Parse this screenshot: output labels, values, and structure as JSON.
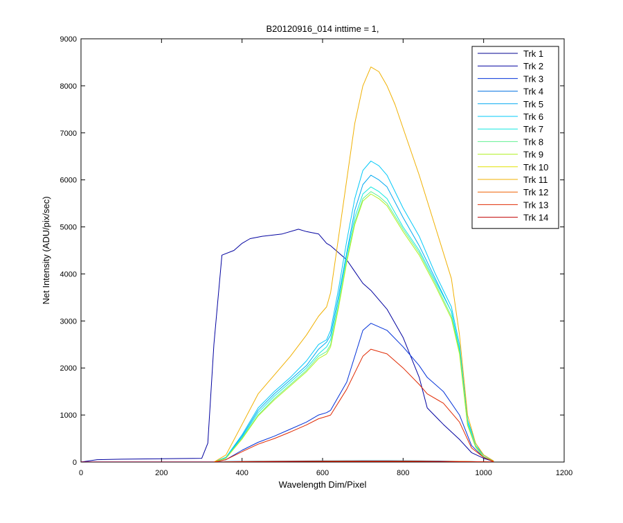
{
  "chart_data": {
    "type": "line",
    "title": "B20120916_014 inttime = 1,",
    "xlabel": "Wavelength Dim/Pixel",
    "ylabel": "Net Intensity (ADU/pix/sec)",
    "xlim": [
      0,
      1200
    ],
    "ylim": [
      0,
      9000
    ],
    "xticks": [
      0,
      200,
      400,
      600,
      800,
      1000,
      1200
    ],
    "yticks": [
      0,
      1000,
      2000,
      3000,
      4000,
      5000,
      6000,
      7000,
      8000,
      9000
    ],
    "grid": false,
    "legend_position": "top-right",
    "series": [
      {
        "name": "Trk 1",
        "color": "#00008f",
        "x": [
          0,
          300,
          320,
          340,
          380,
          420,
          460,
          500,
          540,
          560,
          580,
          610,
          620,
          660,
          700,
          720,
          760,
          800,
          820,
          860,
          900,
          960,
          1000,
          1025
        ],
        "y": [
          5,
          5,
          5,
          5,
          8,
          10,
          12,
          12,
          13,
          14,
          14,
          14,
          14,
          15,
          15,
          15,
          15,
          15,
          14,
          12,
          10,
          8,
          5,
          3
        ]
      },
      {
        "name": "Trk 2",
        "color": "#00009f",
        "x": [
          0,
          40,
          100,
          200,
          300,
          315,
          330,
          350,
          380,
          400,
          420,
          450,
          500,
          540,
          560,
          590,
          610,
          620,
          660,
          700,
          720,
          760,
          800,
          840,
          860,
          900,
          940,
          970,
          1000,
          1025
        ],
        "y": [
          0,
          50,
          60,
          70,
          80,
          400,
          2500,
          4400,
          4500,
          4650,
          4750,
          4800,
          4850,
          4950,
          4900,
          4850,
          4650,
          4600,
          4300,
          3800,
          3650,
          3250,
          2650,
          1800,
          1150,
          800,
          480,
          200,
          80,
          10
        ]
      },
      {
        "name": "Trk 3",
        "color": "#0030d8",
        "x": [
          0,
          330,
          360,
          400,
          440,
          480,
          520,
          560,
          590,
          610,
          620,
          660,
          700,
          720,
          760,
          800,
          840,
          860,
          900,
          940,
          970,
          1000,
          1025
        ],
        "y": [
          0,
          0,
          50,
          250,
          420,
          550,
          700,
          850,
          1000,
          1050,
          1100,
          1700,
          2800,
          2950,
          2800,
          2450,
          2050,
          1800,
          1500,
          1000,
          350,
          100,
          10
        ]
      },
      {
        "name": "Trk 4",
        "color": "#0070e0",
        "x": [
          0,
          340,
          360,
          400,
          440,
          480,
          520,
          560,
          590,
          610,
          620,
          660,
          700,
          720,
          760,
          800,
          840,
          860,
          900,
          940,
          970,
          1000,
          1025
        ],
        "y": [
          0,
          0,
          10,
          15,
          18,
          20,
          22,
          24,
          26,
          26,
          26,
          28,
          30,
          30,
          30,
          28,
          26,
          24,
          20,
          15,
          10,
          5,
          2
        ]
      },
      {
        "name": "Trk 5",
        "color": "#00a8f0",
        "x": [
          0,
          330,
          360,
          400,
          440,
          480,
          520,
          560,
          590,
          610,
          620,
          640,
          660,
          680,
          700,
          720,
          740,
          760,
          800,
          840,
          880,
          920,
          940,
          960,
          980,
          1000,
          1025
        ],
        "y": [
          0,
          0,
          100,
          550,
          1100,
          1450,
          1750,
          2050,
          2400,
          2550,
          2700,
          3550,
          4450,
          5350,
          5900,
          6100,
          6000,
          5850,
          5200,
          4600,
          3900,
          3200,
          2400,
          800,
          350,
          150,
          20
        ]
      },
      {
        "name": "Trk 6",
        "color": "#00c8f8",
        "x": [
          0,
          330,
          360,
          400,
          440,
          480,
          520,
          560,
          590,
          610,
          620,
          640,
          660,
          680,
          700,
          720,
          740,
          760,
          800,
          840,
          880,
          920,
          940,
          960,
          980,
          1000,
          1025
        ],
        "y": [
          0,
          0,
          100,
          580,
          1150,
          1500,
          1800,
          2150,
          2500,
          2600,
          2800,
          3700,
          4700,
          5600,
          6200,
          6400,
          6300,
          6100,
          5400,
          4800,
          4000,
          3300,
          2500,
          900,
          400,
          150,
          20
        ]
      },
      {
        "name": "Trk 7",
        "color": "#10e8e0",
        "x": [
          0,
          330,
          360,
          400,
          440,
          480,
          520,
          560,
          590,
          610,
          620,
          640,
          660,
          680,
          700,
          720,
          740,
          760,
          800,
          840,
          880,
          920,
          940,
          960,
          980,
          1000,
          1025
        ],
        "y": [
          0,
          0,
          90,
          520,
          1050,
          1400,
          1700,
          2000,
          2300,
          2450,
          2600,
          3450,
          4400,
          5200,
          5700,
          5850,
          5750,
          5600,
          5000,
          4500,
          3850,
          3200,
          2400,
          850,
          350,
          120,
          15
        ]
      },
      {
        "name": "Trk 8",
        "color": "#60f090",
        "x": [
          0,
          330,
          360,
          400,
          440,
          480,
          520,
          560,
          590,
          610,
          620,
          640,
          660,
          680,
          700,
          720,
          740,
          760,
          800,
          840,
          880,
          920,
          940,
          960,
          980,
          1000,
          1025
        ],
        "y": [
          0,
          0,
          80,
          500,
          1000,
          1350,
          1650,
          1950,
          2250,
          2350,
          2500,
          3350,
          4300,
          5100,
          5600,
          5750,
          5650,
          5500,
          4950,
          4450,
          3800,
          3100,
          2350,
          800,
          330,
          110,
          15
        ]
      },
      {
        "name": "Trk 9",
        "color": "#b0f020",
        "x": [
          0,
          330,
          360,
          400,
          440,
          480,
          520,
          560,
          590,
          610,
          620,
          640,
          660,
          680,
          700,
          720,
          740,
          760,
          800,
          840,
          880,
          920,
          940,
          960,
          980,
          1000,
          1025
        ],
        "y": [
          0,
          0,
          80,
          490,
          980,
          1320,
          1620,
          1920,
          2200,
          2300,
          2450,
          3300,
          4250,
          5050,
          5550,
          5700,
          5600,
          5450,
          4900,
          4400,
          3750,
          3050,
          2300,
          780,
          320,
          100,
          15
        ]
      },
      {
        "name": "Trk 10",
        "color": "#e0e000",
        "x": [
          0,
          340,
          400,
          440,
          480,
          520,
          560,
          600,
          640,
          700,
          760,
          800,
          840,
          900,
          960,
          1000,
          1025
        ],
        "y": [
          0,
          0,
          8,
          10,
          12,
          14,
          15,
          16,
          17,
          18,
          18,
          17,
          16,
          14,
          10,
          5,
          2
        ]
      },
      {
        "name": "Trk 11",
        "color": "#f0b000",
        "x": [
          0,
          330,
          360,
          400,
          440,
          480,
          520,
          560,
          590,
          610,
          620,
          640,
          660,
          680,
          700,
          720,
          740,
          760,
          780,
          800,
          840,
          880,
          920,
          940,
          960,
          980,
          1000,
          1025
        ],
        "y": [
          0,
          0,
          150,
          800,
          1450,
          1850,
          2250,
          2700,
          3100,
          3300,
          3600,
          4800,
          6000,
          7200,
          8000,
          8400,
          8300,
          8000,
          7600,
          7100,
          6100,
          5000,
          3900,
          2700,
          1000,
          400,
          150,
          20
        ]
      },
      {
        "name": "Trk 12",
        "color": "#f06000",
        "x": [
          0,
          340,
          400,
          440,
          480,
          520,
          560,
          600,
          640,
          700,
          760,
          800,
          840,
          900,
          960,
          1000,
          1025
        ],
        "y": [
          0,
          0,
          10,
          12,
          14,
          16,
          17,
          18,
          19,
          20,
          20,
          19,
          18,
          15,
          10,
          5,
          2
        ]
      },
      {
        "name": "Trk 13",
        "color": "#e02800",
        "x": [
          0,
          330,
          360,
          400,
          440,
          480,
          520,
          560,
          590,
          610,
          620,
          660,
          700,
          720,
          760,
          800,
          840,
          860,
          900,
          940,
          970,
          1000,
          1025
        ],
        "y": [
          0,
          0,
          50,
          220,
          380,
          500,
          640,
          790,
          920,
          970,
          1000,
          1550,
          2250,
          2400,
          2300,
          2000,
          1650,
          1450,
          1250,
          850,
          300,
          100,
          10
        ]
      },
      {
        "name": "Trk 14",
        "color": "#c00000",
        "x": [
          0,
          340,
          400,
          440,
          480,
          520,
          560,
          600,
          640,
          700,
          760,
          800,
          840,
          900,
          960,
          1000,
          1025
        ],
        "y": [
          0,
          0,
          5,
          7,
          8,
          9,
          10,
          11,
          12,
          12,
          12,
          11,
          10,
          9,
          6,
          3,
          1
        ]
      }
    ]
  }
}
